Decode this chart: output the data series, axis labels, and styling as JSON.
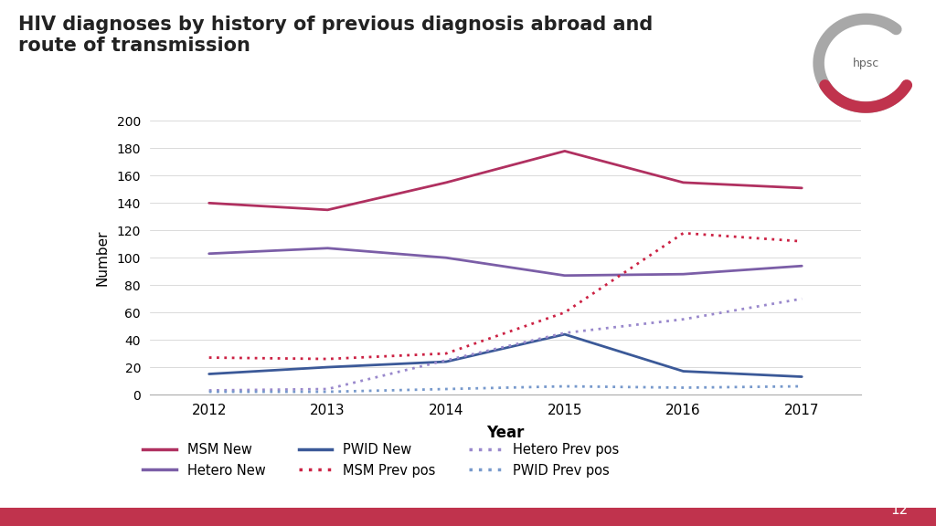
{
  "title": "HIV diagnoses by history of previous diagnosis abroad and\nroute of transmission",
  "years": [
    2012,
    2013,
    2014,
    2015,
    2016,
    2017
  ],
  "msm_new": [
    140,
    135,
    155,
    178,
    155,
    151
  ],
  "hetero_new": [
    103,
    107,
    100,
    87,
    88,
    94
  ],
  "pwid_new": [
    15,
    20,
    24,
    44,
    17,
    13
  ],
  "msm_prev": [
    27,
    26,
    30,
    60,
    118,
    112
  ],
  "hetero_prev": [
    3,
    4,
    25,
    45,
    55,
    70
  ],
  "pwid_prev": [
    2,
    2,
    4,
    6,
    5,
    6
  ],
  "msm_new_color": "#B03060",
  "hetero_new_color": "#7B5EA7",
  "pwid_new_color": "#3B5998",
  "msm_prev_color": "#CC2244",
  "hetero_prev_color": "#9988CC",
  "pwid_prev_color": "#7799CC",
  "xlabel": "Year",
  "ylabel": "Number",
  "ylim": [
    0,
    200
  ],
  "yticks": [
    0,
    20,
    40,
    60,
    80,
    100,
    120,
    140,
    160,
    180,
    200
  ],
  "background_color": "#FFFFFF",
  "page_number": "12",
  "bottom_bar_color": "#C0334D"
}
